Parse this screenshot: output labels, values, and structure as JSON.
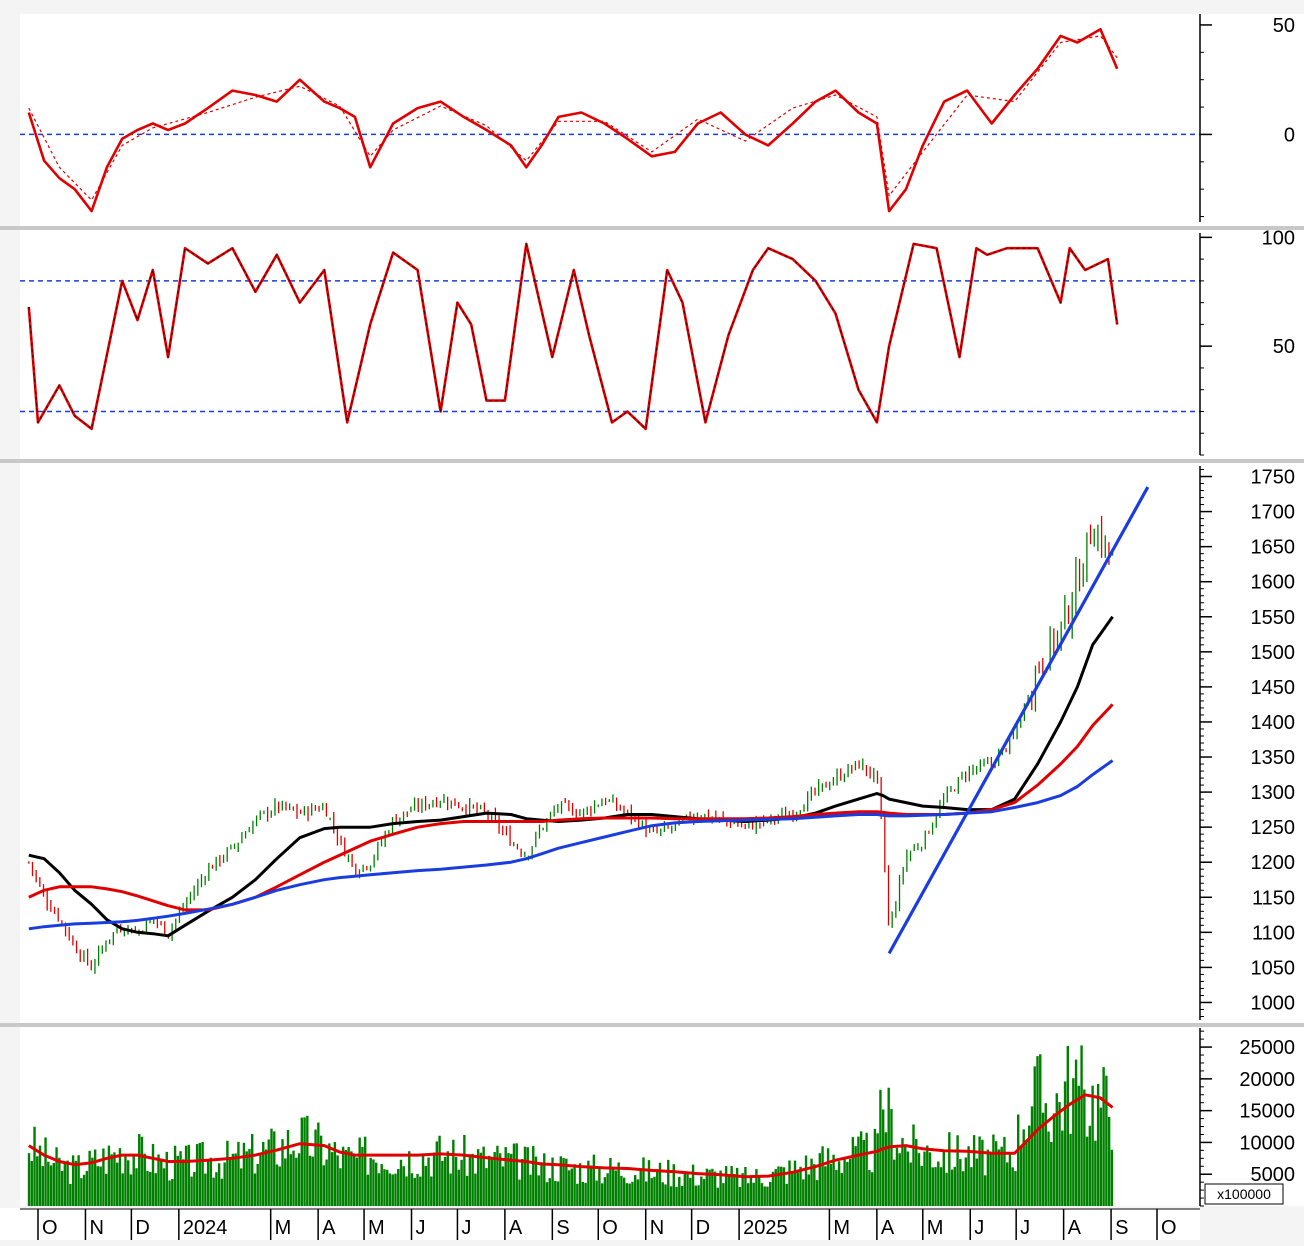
{
  "chart_data": [
    {
      "panel": "momentum",
      "type": "line",
      "y_ticks": [
        50,
        0
      ],
      "ylim": [
        -40,
        55
      ],
      "reference_lines": [
        0
      ],
      "series": [
        {
          "color": "#e00000",
          "style": "solid",
          "x": [
            "2023-09-25",
            "2023-10-05",
            "2023-10-15",
            "2023-10-25",
            "2023-11-05",
            "2023-11-15",
            "2023-11-25",
            "2023-12-05",
            "2023-12-15",
            "2023-12-25",
            "2024-01-05",
            "2024-01-20",
            "2024-02-05",
            "2024-02-20",
            "2024-03-05",
            "2024-03-20",
            "2024-04-05",
            "2024-04-15",
            "2024-04-25",
            "2024-05-05",
            "2024-05-20",
            "2024-06-05",
            "2024-06-20",
            "2024-07-05",
            "2024-07-20",
            "2024-08-05",
            "2024-08-15",
            "2024-08-25",
            "2024-09-05",
            "2024-09-20",
            "2024-10-05",
            "2024-10-20",
            "2024-11-05",
            "2024-11-20",
            "2024-12-05",
            "2024-12-20",
            "2025-01-05",
            "2025-01-20",
            "2025-02-05",
            "2025-02-20",
            "2025-03-05",
            "2025-03-20",
            "2025-04-01",
            "2025-04-09",
            "2025-04-20",
            "2025-05-01",
            "2025-05-15",
            "2025-05-30",
            "2025-06-15",
            "2025-06-30",
            "2025-07-15",
            "2025-07-30",
            "2025-08-10",
            "2025-08-25",
            "2025-09-05"
          ],
          "values": [
            10,
            -12,
            -20,
            -25,
            -35,
            -15,
            -2,
            2,
            5,
            2,
            5,
            12,
            20,
            18,
            15,
            25,
            15,
            12,
            8,
            -15,
            5,
            12,
            15,
            8,
            2,
            -5,
            -15,
            -5,
            8,
            10,
            5,
            -2,
            -10,
            -8,
            5,
            10,
            0,
            -5,
            5,
            15,
            20,
            10,
            5,
            -35,
            -25,
            -5,
            15,
            20,
            5,
            18,
            30,
            45,
            42,
            48,
            30
          ]
        },
        {
          "color": "#e00000",
          "style": "dashed",
          "x": [
            "2023-09-25",
            "2023-10-15",
            "2023-11-05",
            "2023-11-25",
            "2023-12-15",
            "2024-01-20",
            "2024-02-20",
            "2024-03-20",
            "2024-04-15",
            "2024-05-05",
            "2024-05-20",
            "2024-06-20",
            "2024-07-20",
            "2024-08-15",
            "2024-09-05",
            "2024-10-05",
            "2024-11-05",
            "2024-12-05",
            "2025-01-05",
            "2025-02-05",
            "2025-03-05",
            "2025-04-01",
            "2025-04-09",
            "2025-05-01",
            "2025-05-30",
            "2025-06-30",
            "2025-07-30",
            "2025-08-25",
            "2025-09-05"
          ],
          "values": [
            12,
            -15,
            -30,
            -5,
            3,
            10,
            17,
            22,
            13,
            -10,
            2,
            13,
            4,
            -12,
            6,
            6,
            -8,
            7,
            -3,
            12,
            18,
            8,
            -28,
            -8,
            18,
            15,
            42,
            45,
            35
          ]
        }
      ]
    },
    {
      "panel": "stochastic",
      "type": "line",
      "y_ticks": [
        100,
        50
      ],
      "ylim": [
        0,
        102
      ],
      "reference_lines": [
        80,
        20
      ],
      "series": [
        {
          "color": "#e00000",
          "style": "solid",
          "x": [
            "2023-09-25",
            "2023-10-01",
            "2023-10-15",
            "2023-10-25",
            "2023-11-05",
            "2023-11-25",
            "2023-12-05",
            "2023-12-15",
            "2023-12-25",
            "2024-01-05",
            "2024-01-20",
            "2024-02-05",
            "2024-02-20",
            "2024-03-05",
            "2024-03-20",
            "2024-04-05",
            "2024-04-20",
            "2024-05-05",
            "2024-05-20",
            "2024-06-05",
            "2024-06-20",
            "2024-07-01",
            "2024-07-10",
            "2024-07-20",
            "2024-08-01",
            "2024-08-15",
            "2024-09-01",
            "2024-09-15",
            "2024-09-25",
            "2024-10-10",
            "2024-10-20",
            "2024-11-01",
            "2024-11-15",
            "2024-11-25",
            "2024-12-10",
            "2024-12-25",
            "2025-01-10",
            "2025-01-20",
            "2025-02-05",
            "2025-02-20",
            "2025-03-05",
            "2025-03-20",
            "2025-04-01",
            "2025-04-09",
            "2025-04-25",
            "2025-05-10",
            "2025-05-25",
            "2025-06-05",
            "2025-06-12",
            "2025-06-25",
            "2025-07-15",
            "2025-07-30",
            "2025-08-05",
            "2025-08-15",
            "2025-08-30",
            "2025-09-05"
          ],
          "values": [
            68,
            15,
            32,
            18,
            12,
            80,
            62,
            85,
            45,
            95,
            88,
            95,
            75,
            92,
            70,
            85,
            15,
            60,
            93,
            85,
            20,
            70,
            60,
            25,
            25,
            97,
            45,
            85,
            55,
            15,
            20,
            12,
            85,
            70,
            15,
            55,
            85,
            95,
            90,
            80,
            65,
            30,
            15,
            50,
            97,
            95,
            45,
            95,
            92,
            95,
            95,
            70,
            95,
            85,
            90,
            60
          ]
        }
      ]
    },
    {
      "panel": "price",
      "type": "candlestick",
      "y_ticks": [
        1750,
        1700,
        1650,
        1600,
        1550,
        1500,
        1450,
        1400,
        1350,
        1300,
        1250,
        1200,
        1150,
        1100,
        1050,
        1000
      ],
      "ylim": [
        975,
        1765
      ],
      "up_color": "#008000",
      "down_color": "#e00000",
      "x": [
        "2023-09-25",
        "2023-10-05",
        "2023-10-15",
        "2023-10-25",
        "2023-11-05",
        "2023-11-15",
        "2023-11-25",
        "2023-12-05",
        "2023-12-15",
        "2023-12-25",
        "2024-01-05",
        "2024-01-20",
        "2024-02-05",
        "2024-02-20",
        "2024-03-05",
        "2024-03-20",
        "2024-04-05",
        "2024-04-15",
        "2024-04-25",
        "2024-05-05",
        "2024-05-20",
        "2024-06-05",
        "2024-06-20",
        "2024-07-05",
        "2024-07-20",
        "2024-08-05",
        "2024-08-15",
        "2024-08-25",
        "2024-09-05",
        "2024-09-20",
        "2024-10-05",
        "2024-10-20",
        "2024-11-05",
        "2024-11-20",
        "2024-12-05",
        "2024-12-20",
        "2025-01-05",
        "2025-01-20",
        "2025-02-05",
        "2025-02-20",
        "2025-03-05",
        "2025-03-20",
        "2025-04-01",
        "2025-04-05",
        "2025-04-09",
        "2025-04-20",
        "2025-05-01",
        "2025-05-15",
        "2025-05-30",
        "2025-06-15",
        "2025-06-30",
        "2025-07-15",
        "2025-07-30",
        "2025-08-10",
        "2025-08-20",
        "2025-09-02"
      ],
      "close": [
        1200,
        1150,
        1120,
        1080,
        1050,
        1090,
        1110,
        1100,
        1120,
        1100,
        1140,
        1190,
        1220,
        1260,
        1280,
        1270,
        1280,
        1230,
        1190,
        1200,
        1260,
        1280,
        1290,
        1280,
        1270,
        1230,
        1210,
        1250,
        1280,
        1270,
        1290,
        1270,
        1240,
        1250,
        1270,
        1260,
        1250,
        1260,
        1270,
        1300,
        1320,
        1340,
        1320,
        1230,
        1100,
        1210,
        1230,
        1290,
        1330,
        1340,
        1380,
        1480,
        1530,
        1600,
        1680,
        1630
      ],
      "moving_averages": [
        {
          "color": "#000000",
          "values": [
            1210,
            1205,
            1185,
            1160,
            1140,
            1118,
            1105,
            1100,
            1098,
            1095,
            1110,
            1130,
            1150,
            1175,
            1205,
            1235,
            1248,
            1250,
            1250,
            1250,
            1255,
            1258,
            1260,
            1265,
            1270,
            1268,
            1262,
            1260,
            1258,
            1260,
            1263,
            1268,
            1268,
            1265,
            1262,
            1260,
            1258,
            1260,
            1263,
            1270,
            1280,
            1290,
            1298,
            1295,
            1290,
            1285,
            1280,
            1278,
            1275,
            1275,
            1290,
            1340,
            1400,
            1450,
            1510,
            1550
          ]
        },
        {
          "color": "#e00000",
          "values": [
            1150,
            1160,
            1165,
            1165,
            1165,
            1162,
            1158,
            1152,
            1145,
            1138,
            1132,
            1132,
            1140,
            1150,
            1165,
            1182,
            1200,
            1210,
            1220,
            1230,
            1240,
            1250,
            1255,
            1258,
            1258,
            1258,
            1258,
            1258,
            1260,
            1262,
            1263,
            1263,
            1263,
            1262,
            1262,
            1262,
            1262,
            1263,
            1265,
            1268,
            1270,
            1272,
            1272,
            1271,
            1270,
            1268,
            1268,
            1268,
            1270,
            1275,
            1285,
            1310,
            1340,
            1365,
            1395,
            1425
          ]
        },
        {
          "color": "#1a3de0",
          "values": [
            1105,
            1108,
            1110,
            1112,
            1113,
            1114,
            1115,
            1117,
            1120,
            1123,
            1127,
            1133,
            1140,
            1150,
            1160,
            1168,
            1175,
            1178,
            1180,
            1182,
            1185,
            1188,
            1190,
            1193,
            1196,
            1200,
            1205,
            1212,
            1220,
            1228,
            1236,
            1244,
            1252,
            1256,
            1258,
            1259,
            1260,
            1261,
            1262,
            1264,
            1266,
            1268,
            1268,
            1267,
            1266,
            1266,
            1267,
            1268,
            1270,
            1272,
            1278,
            1285,
            1295,
            1308,
            1325,
            1345
          ]
        }
      ],
      "trendlines": [
        {
          "color": "#1a3de0",
          "from": {
            "x": "2025-04-09",
            "y": 1070
          },
          "to": {
            "x": "2025-09-25",
            "y": 1735
          }
        }
      ]
    },
    {
      "panel": "volume",
      "type": "bar",
      "y_ticks": [
        25000,
        20000,
        15000,
        10000,
        5000
      ],
      "ylim": [
        0,
        28000
      ],
      "units_label": "x100000",
      "bar_color": "#008000",
      "x": [
        "2023-09-25",
        "2023-10-05",
        "2023-10-15",
        "2023-10-25",
        "2023-11-05",
        "2023-11-15",
        "2023-11-25",
        "2023-12-05",
        "2023-12-15",
        "2023-12-25",
        "2024-01-05",
        "2024-01-20",
        "2024-02-05",
        "2024-02-20",
        "2024-03-05",
        "2024-03-20",
        "2024-04-05",
        "2024-04-15",
        "2024-04-25",
        "2024-05-05",
        "2024-05-20",
        "2024-06-05",
        "2024-06-20",
        "2024-07-05",
        "2024-07-20",
        "2024-08-05",
        "2024-08-15",
        "2024-08-25",
        "2024-09-05",
        "2024-09-20",
        "2024-10-05",
        "2024-10-20",
        "2024-11-05",
        "2024-11-20",
        "2024-12-05",
        "2024-12-20",
        "2025-01-05",
        "2025-01-20",
        "2025-02-05",
        "2025-02-20",
        "2025-03-05",
        "2025-03-20",
        "2025-04-01",
        "2025-04-05",
        "2025-04-09",
        "2025-04-20",
        "2025-05-01",
        "2025-05-15",
        "2025-05-30",
        "2025-06-15",
        "2025-06-30",
        "2025-07-05",
        "2025-07-15",
        "2025-07-25",
        "2025-08-05",
        "2025-08-15",
        "2025-08-25",
        "2025-09-02"
      ],
      "values": [
        10000,
        8000,
        6500,
        6000,
        7000,
        8000,
        9000,
        8500,
        7500,
        7000,
        7000,
        7500,
        7500,
        8500,
        9500,
        11000,
        9500,
        8000,
        7500,
        8500,
        8000,
        8000,
        8500,
        8000,
        7500,
        7500,
        7000,
        6500,
        6500,
        6000,
        6000,
        6000,
        5500,
        5500,
        5000,
        5000,
        4500,
        5000,
        6000,
        7000,
        8000,
        8500,
        9000,
        17000,
        14000,
        9500,
        9000,
        8500,
        8500,
        8000,
        9000,
        15000,
        18000,
        16000,
        20000,
        18000,
        17000,
        16000
      ],
      "ma": {
        "color": "#e00000",
        "values": [
          9500,
          8000,
          7000,
          6500,
          6800,
          7500,
          8000,
          8000,
          7500,
          7000,
          7000,
          7200,
          7500,
          8000,
          8800,
          9800,
          9500,
          8500,
          8000,
          8000,
          8000,
          8000,
          8200,
          8000,
          7600,
          7200,
          7000,
          6600,
          6500,
          6200,
          6000,
          5900,
          5600,
          5400,
          5100,
          4900,
          4600,
          4700,
          5300,
          6200,
          7200,
          8000,
          8600,
          9000,
          9300,
          9500,
          9000,
          8700,
          8600,
          8300,
          8300,
          9500,
          12000,
          14000,
          16000,
          17500,
          17000,
          15500
        ]
      }
    }
  ],
  "x_axis": {
    "labels": [
      {
        "text": "O",
        "date": "2023-10-01"
      },
      {
        "text": "N",
        "date": "2023-11-01"
      },
      {
        "text": "D",
        "date": "2023-12-01"
      },
      {
        "text": "2024",
        "date": "2024-01-01"
      },
      {
        "text": "M",
        "date": "2024-03-01"
      },
      {
        "text": "A",
        "date": "2024-04-01"
      },
      {
        "text": "M",
        "date": "2024-05-01"
      },
      {
        "text": "J",
        "date": "2024-06-01"
      },
      {
        "text": "J",
        "date": "2024-07-01"
      },
      {
        "text": "A",
        "date": "2024-08-01"
      },
      {
        "text": "S",
        "date": "2024-09-01"
      },
      {
        "text": "O",
        "date": "2024-10-01"
      },
      {
        "text": "N",
        "date": "2024-11-01"
      },
      {
        "text": "D",
        "date": "2024-12-01"
      },
      {
        "text": "2025",
        "date": "2025-01-01"
      },
      {
        "text": "M",
        "date": "2025-03-01"
      },
      {
        "text": "A",
        "date": "2025-04-01"
      },
      {
        "text": "M",
        "date": "2025-05-01"
      },
      {
        "text": "J",
        "date": "2025-06-01"
      },
      {
        "text": "J",
        "date": "2025-07-01"
      },
      {
        "text": "A",
        "date": "2025-08-01"
      },
      {
        "text": "S",
        "date": "2025-09-01"
      },
      {
        "text": "O",
        "date": "2025-10-01"
      }
    ]
  }
}
